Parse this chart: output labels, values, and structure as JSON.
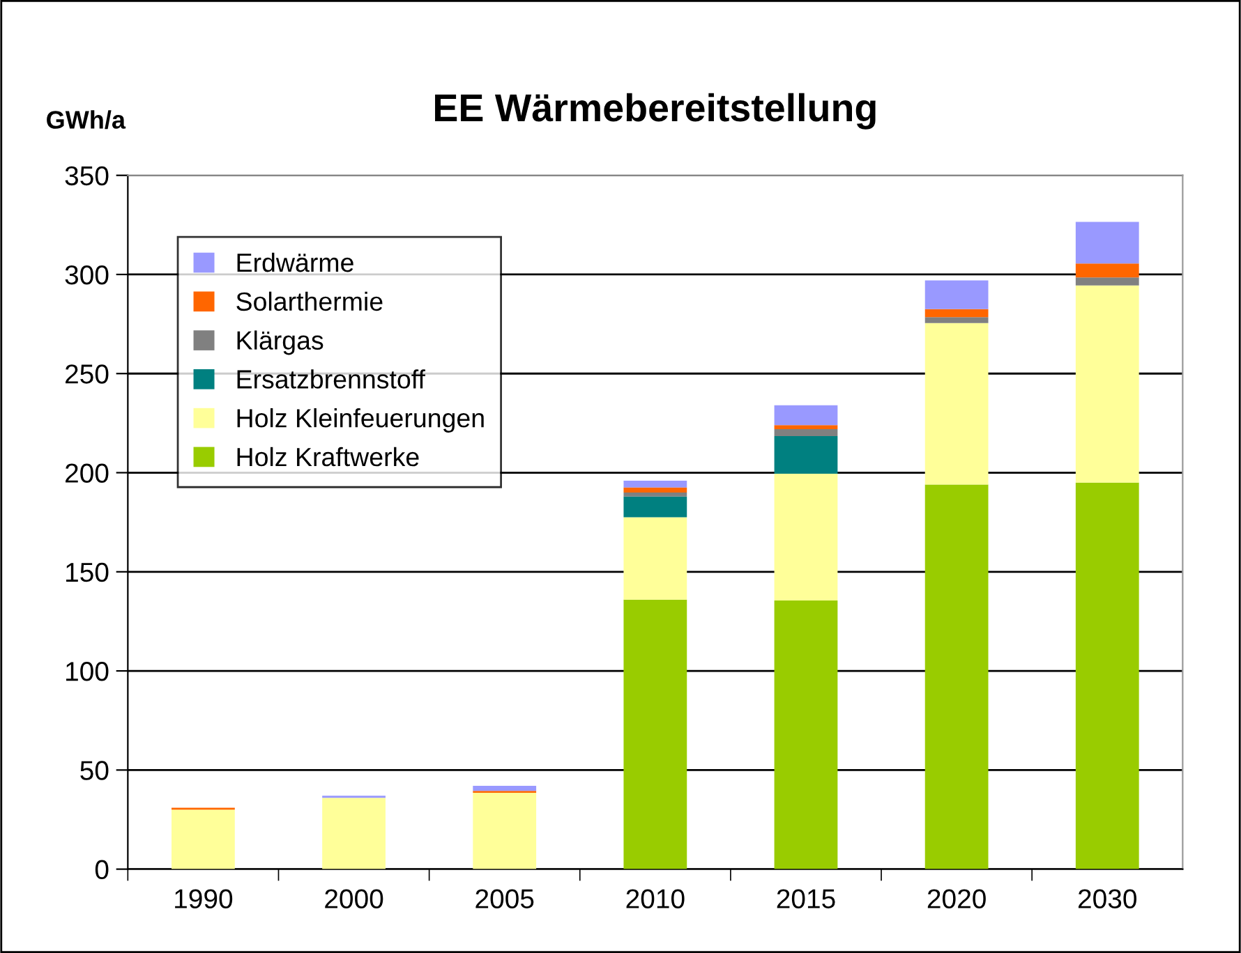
{
  "chart_data": {
    "type": "bar",
    "title": "EE Wärmebereitstellung",
    "ylabel": "GWh/a",
    "stacked": true,
    "categories": [
      "1990",
      "2000",
      "2005",
      "2010",
      "2015",
      "2020",
      "2030"
    ],
    "series": [
      {
        "name": "Holz Kraftwerke",
        "color": "#99cc00",
        "values": [
          0,
          0,
          0,
          136,
          135.5,
          194,
          195
        ]
      },
      {
        "name": "Holz Kleinfeuerungen",
        "color": "#ffff99",
        "values": [
          30,
          36,
          38.5,
          41.5,
          64,
          81.5,
          99.5
        ]
      },
      {
        "name": "Ersatzbrennstoff",
        "color": "#008080",
        "values": [
          0,
          0,
          0,
          10.5,
          19,
          0,
          0
        ]
      },
      {
        "name": "Klärgas",
        "color": "#808080",
        "values": [
          0,
          0,
          0,
          2,
          3.5,
          3,
          4
        ]
      },
      {
        "name": "Solarthermie",
        "color": "#ff6600",
        "values": [
          1,
          0,
          1,
          2.5,
          2,
          4,
          7
        ]
      },
      {
        "name": "Erdwärme",
        "color": "#9999ff",
        "values": [
          0,
          1,
          2.5,
          3.5,
          10,
          14.5,
          21
        ]
      }
    ],
    "ylim": [
      0,
      350
    ],
    "yticks": [
      0,
      50,
      100,
      150,
      200,
      250,
      300,
      350
    ],
    "grid": "y",
    "legend": "top left"
  }
}
